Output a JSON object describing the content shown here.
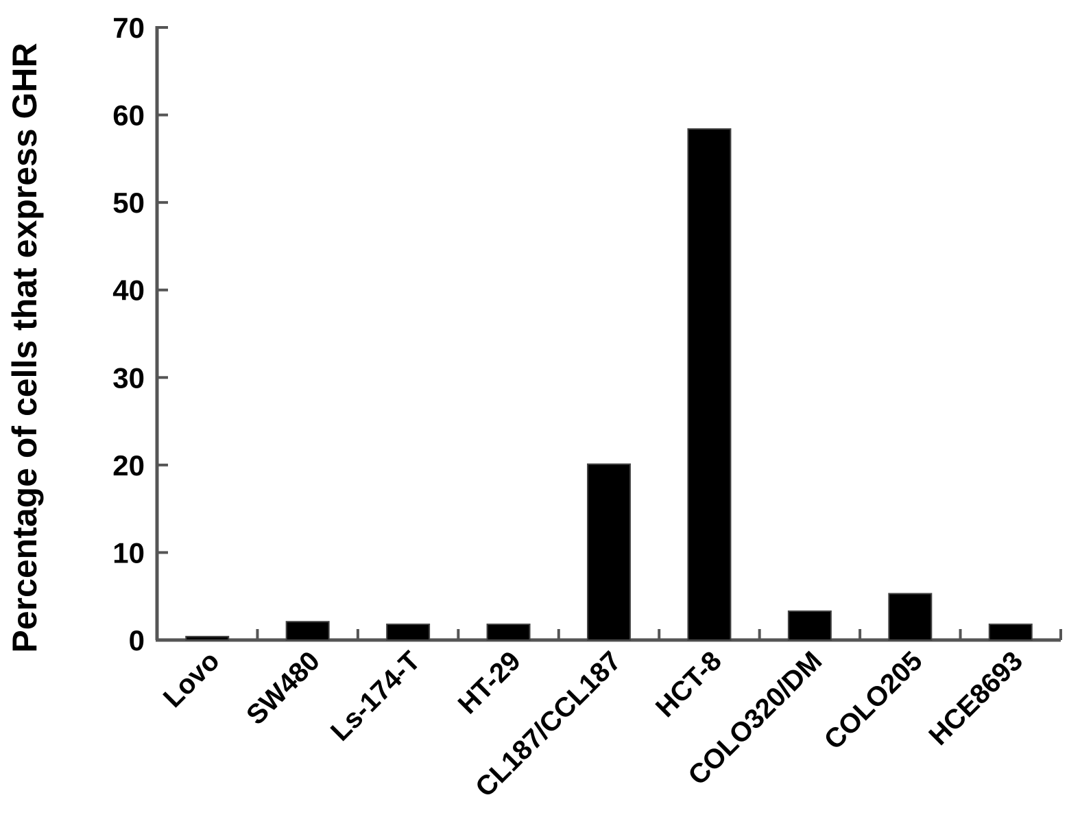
{
  "chart_data": {
    "type": "bar",
    "title": "",
    "xlabel": "",
    "ylabel": "Percentage of cells that express GHR",
    "categories": [
      "Lovo",
      "SW480",
      "Ls-174-T",
      "HT-29",
      "CL187/CCL187",
      "HCT-8",
      "COLO320/DM",
      "COLO205",
      "HCE8693"
    ],
    "values": [
      0.4,
      2.1,
      1.8,
      1.8,
      20.1,
      58.4,
      3.3,
      5.3,
      1.8
    ],
    "ylim": [
      0,
      70
    ],
    "yticks": [
      0,
      10,
      20,
      30,
      40,
      50,
      60,
      70
    ],
    "grid": false,
    "legend": "none",
    "colors": {
      "bar_fill": "#000000",
      "axis": "#555555",
      "text": "#000000"
    }
  }
}
